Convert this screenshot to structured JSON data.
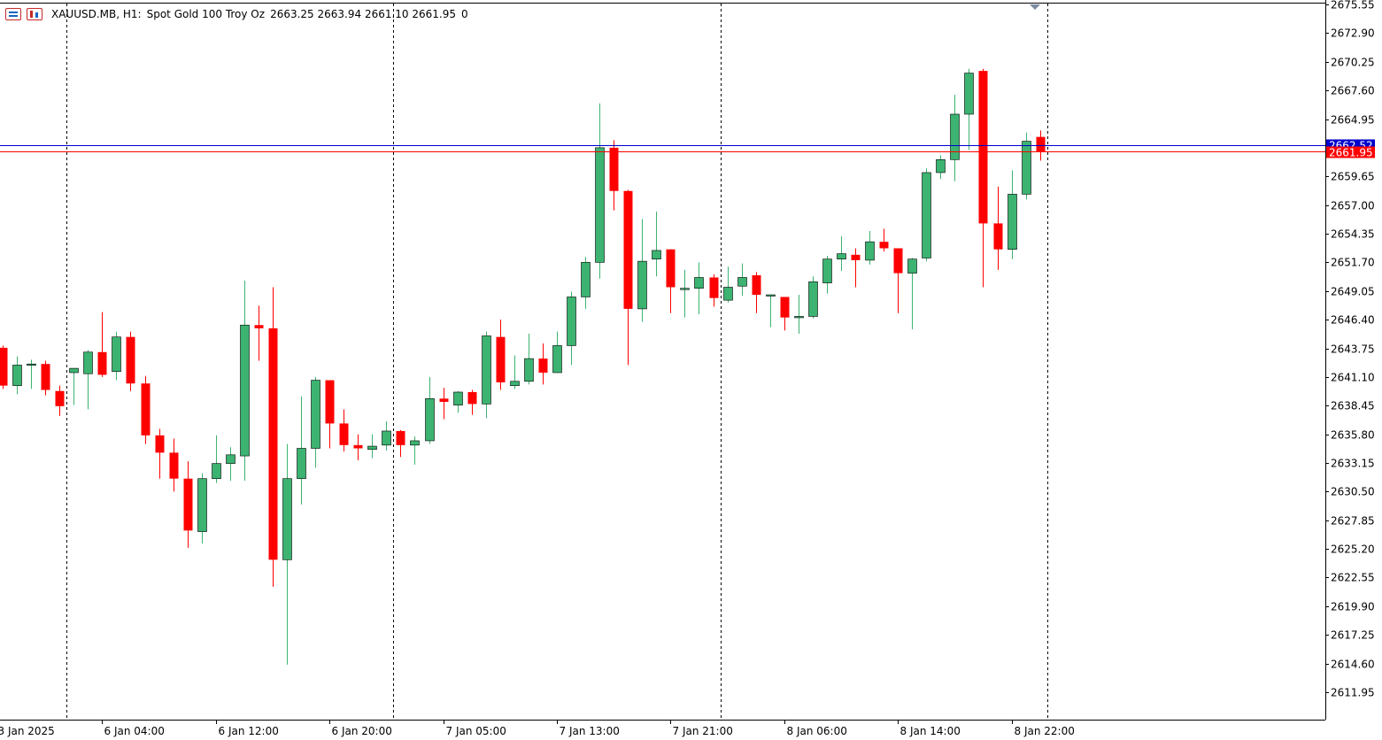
{
  "header": {
    "symbol": "XAUUSD.MB, H1:",
    "description": "Spot Gold 100 Troy Oz",
    "ohlc": "2663.25 2663.94 2661.10 2661.95",
    "extra": "0"
  },
  "chart_data": {
    "type": "candlestick",
    "y_axis": {
      "range": [
        2609.3,
        2675.55
      ],
      "tick_labels": [
        "2675.55",
        "2672.90",
        "2670.25",
        "2667.60",
        "2664.95",
        "2662.30",
        "2659.65",
        "2657.00",
        "2654.35",
        "2651.70",
        "2649.05",
        "2646.40",
        "2643.75",
        "2641.10",
        "2638.45",
        "2635.80",
        "2633.15",
        "2630.50",
        "2627.85",
        "2625.20",
        "2622.55",
        "2619.90",
        "2617.25",
        "2614.60",
        "2611.95"
      ]
    },
    "x_axis": {
      "tick_labels": [
        {
          "label": "3 Jan 2025",
          "index": -0.5
        },
        {
          "label": "6 Jan 04:00",
          "index": 7
        },
        {
          "label": "6 Jan 12:00",
          "index": 15
        },
        {
          "label": "6 Jan 20:00",
          "index": 23
        },
        {
          "label": "7 Jan 05:00",
          "index": 31
        },
        {
          "label": "7 Jan 13:00",
          "index": 39
        },
        {
          "label": "7 Jan 21:00",
          "index": 47
        },
        {
          "label": "8 Jan 06:00",
          "index": 55
        },
        {
          "label": "8 Jan 14:00",
          "index": 63
        },
        {
          "label": "8 Jan 22:00",
          "index": 71
        }
      ]
    },
    "period_separators": [
      4.5,
      27.5,
      50.5,
      73.5
    ],
    "ask_price": 2662.52,
    "bid_price": 2661.95,
    "ask_label": "2662.52",
    "bid_label": "2661.95",
    "colors": {
      "bull": "#3cb371",
      "bear": "#ff0000",
      "ask_line": "#0000cc",
      "bid_line": "#ff0000"
    },
    "candles": [
      {
        "o": 2643.8,
        "h": 2644.0,
        "l": 2640.0,
        "c": 2640.3
      },
      {
        "o": 2640.3,
        "h": 2643.0,
        "l": 2639.5,
        "c": 2642.2
      },
      {
        "o": 2642.2,
        "h": 2642.7,
        "l": 2640.0,
        "c": 2642.3
      },
      {
        "o": 2642.3,
        "h": 2642.6,
        "l": 2639.4,
        "c": 2639.9
      },
      {
        "o": 2639.8,
        "h": 2640.3,
        "l": 2637.5,
        "c": 2638.4
      },
      {
        "o": 2641.5,
        "h": 2641.9,
        "l": 2638.5,
        "c": 2641.9
      },
      {
        "o": 2641.4,
        "h": 2643.6,
        "l": 2638.1,
        "c": 2643.4
      },
      {
        "o": 2643.4,
        "h": 2647.1,
        "l": 2641.1,
        "c": 2641.3
      },
      {
        "o": 2641.6,
        "h": 2645.3,
        "l": 2640.8,
        "c": 2644.8
      },
      {
        "o": 2644.8,
        "h": 2645.3,
        "l": 2639.8,
        "c": 2640.5
      },
      {
        "o": 2640.5,
        "h": 2641.2,
        "l": 2634.9,
        "c": 2635.7
      },
      {
        "o": 2635.7,
        "h": 2636.3,
        "l": 2631.7,
        "c": 2634.1
      },
      {
        "o": 2634.1,
        "h": 2635.4,
        "l": 2630.5,
        "c": 2631.7
      },
      {
        "o": 2631.7,
        "h": 2633.3,
        "l": 2625.3,
        "c": 2626.9
      },
      {
        "o": 2626.8,
        "h": 2632.2,
        "l": 2625.7,
        "c": 2631.7
      },
      {
        "o": 2631.7,
        "h": 2635.7,
        "l": 2631.3,
        "c": 2633.1
      },
      {
        "o": 2633.1,
        "h": 2634.6,
        "l": 2631.5,
        "c": 2633.9
      },
      {
        "o": 2633.8,
        "h": 2650.0,
        "l": 2631.5,
        "c": 2645.9
      },
      {
        "o": 2645.9,
        "h": 2647.7,
        "l": 2642.6,
        "c": 2645.6
      },
      {
        "o": 2645.6,
        "h": 2649.4,
        "l": 2621.7,
        "c": 2624.2
      },
      {
        "o": 2624.2,
        "h": 2634.9,
        "l": 2614.5,
        "c": 2631.7
      },
      {
        "o": 2631.7,
        "h": 2639.3,
        "l": 2629.3,
        "c": 2634.5
      },
      {
        "o": 2634.5,
        "h": 2641.1,
        "l": 2632.7,
        "c": 2640.8
      },
      {
        "o": 2640.8,
        "h": 2640.7,
        "l": 2634.5,
        "c": 2636.8
      },
      {
        "o": 2636.8,
        "h": 2638.1,
        "l": 2634.2,
        "c": 2634.8
      },
      {
        "o": 2634.8,
        "h": 2635.8,
        "l": 2633.4,
        "c": 2634.5
      },
      {
        "o": 2634.4,
        "h": 2635.8,
        "l": 2633.6,
        "c": 2634.7
      },
      {
        "o": 2634.8,
        "h": 2637.0,
        "l": 2634.3,
        "c": 2636.1
      },
      {
        "o": 2636.1,
        "h": 2636.2,
        "l": 2633.7,
        "c": 2634.8
      },
      {
        "o": 2634.8,
        "h": 2635.6,
        "l": 2633.0,
        "c": 2635.2
      },
      {
        "o": 2635.2,
        "h": 2641.1,
        "l": 2634.9,
        "c": 2639.1
      },
      {
        "o": 2639.1,
        "h": 2640.1,
        "l": 2637.2,
        "c": 2638.8
      },
      {
        "o": 2638.5,
        "h": 2639.8,
        "l": 2637.8,
        "c": 2639.7
      },
      {
        "o": 2639.7,
        "h": 2639.9,
        "l": 2637.6,
        "c": 2638.6
      },
      {
        "o": 2638.6,
        "h": 2645.3,
        "l": 2637.3,
        "c": 2644.9
      },
      {
        "o": 2644.8,
        "h": 2646.4,
        "l": 2639.9,
        "c": 2640.6
      },
      {
        "o": 2640.3,
        "h": 2643.1,
        "l": 2640.0,
        "c": 2640.7
      },
      {
        "o": 2640.7,
        "h": 2645.1,
        "l": 2640.4,
        "c": 2642.8
      },
      {
        "o": 2642.8,
        "h": 2644.2,
        "l": 2640.4,
        "c": 2641.5
      },
      {
        "o": 2641.5,
        "h": 2645.3,
        "l": 2641.5,
        "c": 2644.0
      },
      {
        "o": 2644.0,
        "h": 2649.0,
        "l": 2642.2,
        "c": 2648.5
      },
      {
        "o": 2648.5,
        "h": 2652.2,
        "l": 2647.4,
        "c": 2651.7
      },
      {
        "o": 2651.7,
        "h": 2666.4,
        "l": 2650.2,
        "c": 2662.3
      },
      {
        "o": 2662.3,
        "h": 2663.0,
        "l": 2656.5,
        "c": 2658.3
      },
      {
        "o": 2658.3,
        "h": 2658.4,
        "l": 2642.2,
        "c": 2647.4
      },
      {
        "o": 2647.4,
        "h": 2655.7,
        "l": 2646.2,
        "c": 2651.8
      },
      {
        "o": 2652.0,
        "h": 2656.4,
        "l": 2650.4,
        "c": 2652.8
      },
      {
        "o": 2652.9,
        "h": 2652.9,
        "l": 2647.0,
        "c": 2649.4
      },
      {
        "o": 2649.2,
        "h": 2651.0,
        "l": 2646.6,
        "c": 2649.3
      },
      {
        "o": 2649.3,
        "h": 2651.7,
        "l": 2646.9,
        "c": 2650.3
      },
      {
        "o": 2650.3,
        "h": 2650.6,
        "l": 2647.6,
        "c": 2648.4
      },
      {
        "o": 2648.2,
        "h": 2651.3,
        "l": 2648.0,
        "c": 2649.4
      },
      {
        "o": 2649.5,
        "h": 2651.6,
        "l": 2648.6,
        "c": 2650.3
      },
      {
        "o": 2650.5,
        "h": 2650.8,
        "l": 2647.0,
        "c": 2648.7
      },
      {
        "o": 2648.7,
        "h": 2648.6,
        "l": 2645.7,
        "c": 2648.7
      },
      {
        "o": 2648.5,
        "h": 2648.5,
        "l": 2645.4,
        "c": 2646.6
      },
      {
        "o": 2646.6,
        "h": 2648.7,
        "l": 2645.1,
        "c": 2646.7
      },
      {
        "o": 2646.7,
        "h": 2650.4,
        "l": 2646.5,
        "c": 2649.9
      },
      {
        "o": 2649.8,
        "h": 2652.3,
        "l": 2648.8,
        "c": 2652.0
      },
      {
        "o": 2652.0,
        "h": 2654.1,
        "l": 2650.9,
        "c": 2652.5
      },
      {
        "o": 2652.4,
        "h": 2653.0,
        "l": 2649.4,
        "c": 2651.9
      },
      {
        "o": 2651.9,
        "h": 2654.6,
        "l": 2651.5,
        "c": 2653.6
      },
      {
        "o": 2653.6,
        "h": 2654.8,
        "l": 2652.7,
        "c": 2653.0
      },
      {
        "o": 2653.0,
        "h": 2652.9,
        "l": 2647.0,
        "c": 2650.7
      },
      {
        "o": 2650.7,
        "h": 2652.1,
        "l": 2645.5,
        "c": 2652.0
      },
      {
        "o": 2652.1,
        "h": 2660.4,
        "l": 2651.8,
        "c": 2660.0
      },
      {
        "o": 2660.0,
        "h": 2661.6,
        "l": 2659.4,
        "c": 2661.2
      },
      {
        "o": 2661.2,
        "h": 2667.2,
        "l": 2659.2,
        "c": 2665.4
      },
      {
        "o": 2665.4,
        "h": 2669.6,
        "l": 2662.1,
        "c": 2669.2
      },
      {
        "o": 2669.4,
        "h": 2669.6,
        "l": 2649.4,
        "c": 2655.3
      },
      {
        "o": 2655.3,
        "h": 2658.7,
        "l": 2651.0,
        "c": 2652.9
      },
      {
        "o": 2652.9,
        "h": 2660.2,
        "l": 2652.0,
        "c": 2658.0
      },
      {
        "o": 2658.0,
        "h": 2663.7,
        "l": 2657.5,
        "c": 2662.9
      },
      {
        "o": 2663.3,
        "h": 2663.9,
        "l": 2661.1,
        "c": 2661.95
      }
    ]
  }
}
